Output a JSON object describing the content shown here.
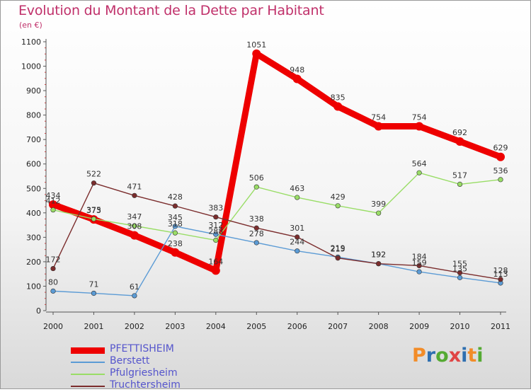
{
  "title": "Evolution du Montant de la Dette par Habitant",
  "subtitle": "(en €)",
  "logo": {
    "text": "Proxiti",
    "colors": [
      "#f28c28",
      "#2e6fb0",
      "#55aa33",
      "#e04545",
      "#2e6fb0",
      "#f28c28",
      "#55aa33"
    ]
  },
  "chart_data": {
    "type": "line",
    "x": [
      "2000",
      "2001",
      "2002",
      "2003",
      "2004",
      "2005",
      "2006",
      "2007",
      "2008",
      "2009",
      "2010",
      "2011"
    ],
    "ylim": [
      0,
      1100
    ],
    "yticks": [
      0,
      100,
      200,
      300,
      400,
      500,
      600,
      700,
      800,
      900,
      1000,
      1100
    ],
    "grid": false,
    "legend_position": "bottom-left",
    "series": [
      {
        "name": "PFETTISHEIM",
        "color": "#ee0000",
        "values": [
          434,
          373,
          308,
          238,
          164,
          1051,
          948,
          835,
          754,
          754,
          692,
          629
        ]
      },
      {
        "name": "Berstett",
        "color": "#5b9bd5",
        "values": [
          80,
          71,
          61,
          345,
          312,
          278,
          244,
          219,
          192,
          159,
          135,
          113
        ]
      },
      {
        "name": "Pfulgriesheim",
        "color": "#99dd66",
        "values": [
          412,
          375,
          347,
          318,
          288,
          506,
          463,
          429,
          399,
          564,
          517,
          536
        ]
      },
      {
        "name": "Truchtersheim",
        "color": "#7b2d2d",
        "values": [
          172,
          522,
          471,
          428,
          383,
          338,
          301,
          215,
          192,
          184,
          155,
          128
        ]
      }
    ]
  }
}
